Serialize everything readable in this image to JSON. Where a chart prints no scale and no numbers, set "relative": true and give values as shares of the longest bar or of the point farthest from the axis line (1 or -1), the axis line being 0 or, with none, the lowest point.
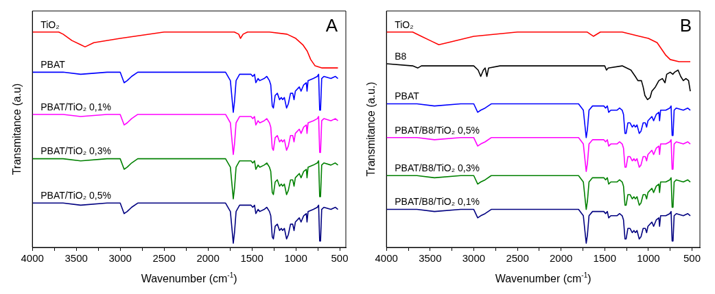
{
  "chart_data": [
    {
      "type": "line",
      "xlabel": "Wavenumber (cm$^{-1}$)",
      "ylabel": "Transmitance (a.u)",
      "annotations": [
        "A"
      ],
      "relative": true,
      "xlim": [
        4000,
        430
      ],
      "xticks": [
        4000,
        {
          "value": 3750,
          "label": null
        },
        3500,
        {
          "value": 3250,
          "label": null
        },
        3000,
        {
          "value": 2750,
          "label": null
        },
        2500,
        {
          "value": 2250,
          "label": null
        },
        2000,
        {
          "value": 1750,
          "label": null
        },
        1500,
        {
          "value": 1250,
          "label": null
        },
        1000,
        {
          "value": 750,
          "label": null
        },
        500
      ],
      "x": [
        4000,
        3650,
        3450,
        3150,
        3000,
        2955,
        2920,
        2870,
        2800,
        1800,
        1745,
        1725,
        1712,
        1698,
        1680,
        1640,
        1510,
        1490,
        1470,
        1455,
        1430,
        1410,
        1360,
        1330,
        1300,
        1285,
        1268,
        1255,
        1235,
        1210,
        1185,
        1165,
        1150,
        1130,
        1105,
        1085,
        1060,
        1035,
        1020,
        1005,
        960,
        940,
        910,
        880,
        872,
        860,
        800,
        755,
        740,
        728,
        718,
        705,
        680,
        600,
        550,
        520
      ],
      "series": [
        {
          "name": "TiO₂",
          "color": "#ff0000",
          "x": [
            4000,
            3700,
            3650,
            3550,
            3450,
            3400,
            3300,
            3000,
            2500,
            1700,
            1650,
            1630,
            1600,
            1550,
            1300,
            1100,
            1000,
            920,
            870,
            830,
            780,
            700,
            600,
            520
          ],
          "values": [
            1,
            1,
            0.99,
            0.96,
            0.94,
            0.93,
            0.95,
            0.97,
            1,
            1,
            0.99,
            0.97,
            0.99,
            1,
            1,
            0.99,
            0.97,
            0.94,
            0.91,
            0.87,
            0.84,
            0.83,
            0.83,
            0.83
          ]
        },
        {
          "name": "PBAT",
          "color": "#0000ff",
          "values": [
            0.81,
            0.81,
            0.8,
            0.81,
            0.81,
            0.76,
            0.77,
            0.79,
            0.81,
            0.81,
            0.77,
            0.68,
            0.62,
            0.67,
            0.77,
            0.8,
            0.8,
            0.79,
            0.8,
            0.76,
            0.78,
            0.77,
            0.78,
            0.79,
            0.77,
            0.75,
            0.65,
            0.64,
            0.7,
            0.71,
            0.68,
            0.69,
            0.68,
            0.69,
            0.64,
            0.66,
            0.71,
            0.71,
            0.68,
            0.72,
            0.74,
            0.72,
            0.75,
            0.76,
            0.72,
            0.77,
            0.78,
            0.79,
            0.8,
            0.63,
            0.63,
            0.78,
            0.79,
            0.78,
            0.79,
            0.78
          ]
        },
        {
          "name": "PBAT/TiO₂ 0,1%",
          "color": "#ff00ff",
          "values": [
            0.61,
            0.61,
            0.6,
            0.61,
            0.61,
            0.56,
            0.57,
            0.59,
            0.61,
            0.61,
            0.57,
            0.48,
            0.42,
            0.47,
            0.57,
            0.6,
            0.6,
            0.59,
            0.6,
            0.56,
            0.58,
            0.57,
            0.58,
            0.59,
            0.57,
            0.55,
            0.45,
            0.44,
            0.5,
            0.51,
            0.48,
            0.49,
            0.48,
            0.49,
            0.44,
            0.46,
            0.51,
            0.51,
            0.48,
            0.52,
            0.54,
            0.52,
            0.55,
            0.56,
            0.52,
            0.57,
            0.58,
            0.59,
            0.6,
            0.43,
            0.43,
            0.58,
            0.59,
            0.58,
            0.59,
            0.58
          ]
        },
        {
          "name": "PBAT/TiO₂ 0,3%",
          "color": "#008000",
          "values": [
            0.4,
            0.4,
            0.39,
            0.4,
            0.4,
            0.35,
            0.36,
            0.38,
            0.4,
            0.4,
            0.36,
            0.27,
            0.21,
            0.26,
            0.36,
            0.39,
            0.39,
            0.38,
            0.39,
            0.35,
            0.37,
            0.36,
            0.37,
            0.38,
            0.36,
            0.34,
            0.24,
            0.23,
            0.29,
            0.3,
            0.27,
            0.28,
            0.27,
            0.28,
            0.23,
            0.25,
            0.3,
            0.3,
            0.27,
            0.31,
            0.33,
            0.31,
            0.34,
            0.35,
            0.31,
            0.36,
            0.37,
            0.38,
            0.39,
            0.22,
            0.22,
            0.37,
            0.38,
            0.37,
            0.38,
            0.37
          ]
        },
        {
          "name": "PBAT/TiO₂ 0,5%",
          "color": "#000080",
          "values": [
            0.19,
            0.19,
            0.18,
            0.19,
            0.19,
            0.14,
            0.15,
            0.17,
            0.19,
            0.19,
            0.15,
            0.06,
            0,
            0.05,
            0.15,
            0.18,
            0.18,
            0.17,
            0.18,
            0.14,
            0.16,
            0.15,
            0.16,
            0.17,
            0.15,
            0.13,
            0.03,
            0.02,
            0.08,
            0.09,
            0.06,
            0.07,
            0.06,
            0.07,
            0.02,
            0.04,
            0.09,
            0.09,
            0.06,
            0.1,
            0.12,
            0.1,
            0.13,
            0.14,
            0.1,
            0.15,
            0.16,
            0.17,
            0.18,
            0.01,
            0.01,
            0.16,
            0.17,
            0.16,
            0.17,
            0.16
          ]
        }
      ]
    },
    {
      "type": "line",
      "xlabel": "Wavenumber (cm$^{-1}$)",
      "ylabel": "Transmitance (a.u.)",
      "annotations": [
        "B"
      ],
      "relative": true,
      "xlim": [
        4000,
        410
      ],
      "xticks": [
        4000,
        {
          "value": 3750,
          "label": null
        },
        3500,
        {
          "value": 3250,
          "label": null
        },
        3000,
        {
          "value": 2750,
          "label": null
        },
        2500,
        {
          "value": 2250,
          "label": null
        },
        2000,
        {
          "value": 1750,
          "label": null
        },
        1500,
        {
          "value": 1250,
          "label": null
        },
        1000,
        {
          "value": 750,
          "label": null
        },
        500
      ],
      "x": [
        4000,
        3650,
        3450,
        3150,
        3000,
        2955,
        2920,
        2870,
        2800,
        1800,
        1745,
        1725,
        1712,
        1698,
        1680,
        1640,
        1510,
        1490,
        1470,
        1455,
        1430,
        1410,
        1360,
        1330,
        1300,
        1285,
        1268,
        1255,
        1235,
        1210,
        1185,
        1165,
        1150,
        1130,
        1105,
        1085,
        1060,
        1035,
        1020,
        1005,
        960,
        940,
        910,
        880,
        872,
        860,
        800,
        755,
        740,
        728,
        718,
        705,
        680,
        600,
        550,
        520
      ],
      "series": [
        {
          "name": "TiO₂",
          "color": "#ff0000",
          "x": [
            4000,
            3700,
            3600,
            3500,
            3400,
            3300,
            3000,
            2500,
            1700,
            1630,
            1550,
            1300,
            1100,
            1000,
            900,
            850,
            800,
            750,
            650,
            520
          ],
          "values": [
            1,
            1,
            0.98,
            0.96,
            0.94,
            0.95,
            0.98,
            1,
            1,
            0.98,
            1,
            1,
            0.98,
            0.97,
            0.95,
            0.92,
            0.89,
            0.87,
            0.86,
            0.86
          ]
        },
        {
          "name": "B8",
          "color": "#000000",
          "x": [
            4000,
            3700,
            3640,
            3600,
            3500,
            3000,
            2950,
            2920,
            2890,
            2870,
            2850,
            2830,
            2700,
            1700,
            1650,
            1500,
            1480,
            1460,
            1300,
            1200,
            1150,
            1120,
            1080,
            1060,
            1040,
            1010,
            980,
            960,
            920,
            880,
            840,
            810,
            790,
            750,
            720,
            700,
            660,
            630,
            600,
            570,
            540,
            520
          ],
          "values": [
            0.85,
            0.84,
            0.83,
            0.84,
            0.84,
            0.84,
            0.82,
            0.79,
            0.82,
            0.83,
            0.79,
            0.83,
            0.84,
            0.84,
            0.84,
            0.84,
            0.82,
            0.83,
            0.84,
            0.82,
            0.79,
            0.77,
            0.77,
            0.74,
            0.7,
            0.68,
            0.69,
            0.72,
            0.74,
            0.77,
            0.78,
            0.76,
            0.8,
            0.81,
            0.8,
            0.81,
            0.82,
            0.79,
            0.77,
            0.78,
            0.77,
            0.72
          ]
        },
        {
          "name": "PBAT",
          "color": "#0000ff",
          "values": [
            0.66,
            0.66,
            0.65,
            0.66,
            0.66,
            0.62,
            0.63,
            0.64,
            0.66,
            0.66,
            0.63,
            0.55,
            0.5,
            0.54,
            0.63,
            0.65,
            0.65,
            0.64,
            0.65,
            0.62,
            0.63,
            0.63,
            0.63,
            0.64,
            0.63,
            0.61,
            0.52,
            0.52,
            0.57,
            0.57,
            0.55,
            0.56,
            0.55,
            0.56,
            0.52,
            0.53,
            0.57,
            0.57,
            0.55,
            0.58,
            0.6,
            0.58,
            0.61,
            0.62,
            0.58,
            0.63,
            0.63,
            0.64,
            0.65,
            0.51,
            0.51,
            0.63,
            0.64,
            0.63,
            0.64,
            0.63
          ]
        },
        {
          "name": "PBAT/B8/TiO₂ 0,5%",
          "color": "#ff00ff",
          "values": [
            0.5,
            0.5,
            0.49,
            0.5,
            0.5,
            0.46,
            0.47,
            0.48,
            0.5,
            0.5,
            0.47,
            0.39,
            0.34,
            0.38,
            0.47,
            0.49,
            0.49,
            0.48,
            0.49,
            0.46,
            0.47,
            0.47,
            0.47,
            0.48,
            0.47,
            0.45,
            0.36,
            0.36,
            0.41,
            0.41,
            0.39,
            0.4,
            0.39,
            0.4,
            0.36,
            0.37,
            0.41,
            0.41,
            0.39,
            0.42,
            0.44,
            0.42,
            0.45,
            0.46,
            0.42,
            0.47,
            0.47,
            0.48,
            0.49,
            0.35,
            0.35,
            0.47,
            0.48,
            0.47,
            0.48,
            0.47
          ]
        },
        {
          "name": "PBAT/B8/TiO₂ 0,3%",
          "color": "#008000",
          "values": [
            0.32,
            0.32,
            0.31,
            0.32,
            0.32,
            0.28,
            0.29,
            0.3,
            0.32,
            0.32,
            0.29,
            0.21,
            0.16,
            0.2,
            0.29,
            0.31,
            0.31,
            0.3,
            0.31,
            0.28,
            0.29,
            0.29,
            0.29,
            0.3,
            0.29,
            0.27,
            0.18,
            0.18,
            0.23,
            0.23,
            0.21,
            0.22,
            0.21,
            0.22,
            0.18,
            0.19,
            0.23,
            0.23,
            0.21,
            0.24,
            0.26,
            0.24,
            0.27,
            0.28,
            0.24,
            0.29,
            0.29,
            0.3,
            0.31,
            0.17,
            0.17,
            0.29,
            0.3,
            0.29,
            0.3,
            0.29
          ]
        },
        {
          "name": "PBAT/B8/TiO₂ 0,1%",
          "color": "#000080",
          "values": [
            0.16,
            0.16,
            0.15,
            0.16,
            0.16,
            0.12,
            0.13,
            0.14,
            0.16,
            0.16,
            0.13,
            0.05,
            0,
            0.04,
            0.13,
            0.15,
            0.15,
            0.14,
            0.15,
            0.12,
            0.13,
            0.13,
            0.13,
            0.14,
            0.13,
            0.11,
            0.02,
            0.02,
            0.07,
            0.07,
            0.05,
            0.06,
            0.05,
            0.06,
            0.02,
            0.03,
            0.07,
            0.07,
            0.05,
            0.08,
            0.1,
            0.08,
            0.11,
            0.12,
            0.08,
            0.13,
            0.13,
            0.14,
            0.15,
            0.01,
            0.01,
            0.13,
            0.14,
            0.13,
            0.14,
            0.13
          ]
        }
      ]
    }
  ]
}
